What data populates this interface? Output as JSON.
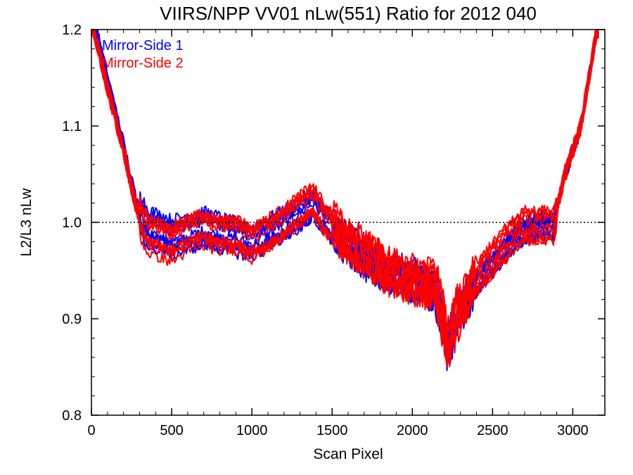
{
  "chart_data": {
    "type": "line",
    "title": "VIIRS/NPP VV01 nLw(551) Ratio for 2012 040",
    "xlabel": "Scan Pixel",
    "ylabel": "L2/L3 nLw",
    "xlim": [
      0,
      3200
    ],
    "ylim": [
      0.8,
      1.2
    ],
    "x_ticks": [
      0,
      500,
      1000,
      1500,
      2000,
      2500,
      3000
    ],
    "y_ticks": [
      0.8,
      0.9,
      1.0,
      1.1,
      1.2
    ],
    "y_tick_labels": [
      "0.8",
      "0.9",
      "1.0",
      "1.1",
      "1.2"
    ],
    "reference_line": {
      "y": 1.0,
      "style": "dotted",
      "color": "#000000"
    },
    "legend_position": "top-left",
    "series": [
      {
        "name": "Mirror-Side 1",
        "color": "#0000ff",
        "x": [
          0,
          100,
          200,
          280,
          350,
          500,
          600,
          700,
          800,
          900,
          1000,
          1100,
          1200,
          1300,
          1380,
          1450,
          1550,
          1650,
          1750,
          1850,
          1950,
          2050,
          2150,
          2220,
          2300,
          2400,
          2500,
          2600,
          2700,
          2800,
          2880,
          2950,
          3050,
          3150
        ],
        "y": [
          1.22,
          1.15,
          1.08,
          1.02,
          0.995,
          0.985,
          0.99,
          0.995,
          0.99,
          0.985,
          0.98,
          0.99,
          1.0,
          1.01,
          1.02,
          1.005,
          0.985,
          0.975,
          0.96,
          0.95,
          0.945,
          0.94,
          0.93,
          0.875,
          0.91,
          0.94,
          0.96,
          0.98,
          0.995,
          1.0,
          1.0,
          1.05,
          1.1,
          1.2
        ]
      },
      {
        "name": "Mirror-Side 2",
        "color": "#ff0000",
        "x": [
          0,
          100,
          200,
          280,
          350,
          500,
          600,
          700,
          800,
          900,
          1000,
          1100,
          1200,
          1300,
          1380,
          1450,
          1550,
          1650,
          1750,
          1850,
          1950,
          2050,
          2150,
          2220,
          2300,
          2400,
          2500,
          2600,
          2700,
          2800,
          2880,
          2950,
          3050,
          3150
        ],
        "y": [
          1.21,
          1.14,
          1.075,
          1.015,
          0.99,
          0.98,
          0.99,
          0.995,
          0.99,
          0.99,
          0.98,
          0.99,
          1.0,
          1.015,
          1.025,
          1.005,
          0.99,
          0.975,
          0.965,
          0.95,
          0.945,
          0.94,
          0.935,
          0.88,
          0.915,
          0.945,
          0.965,
          0.985,
          1.0,
          1.0,
          1.0,
          1.05,
          1.1,
          1.2
        ]
      }
    ]
  }
}
